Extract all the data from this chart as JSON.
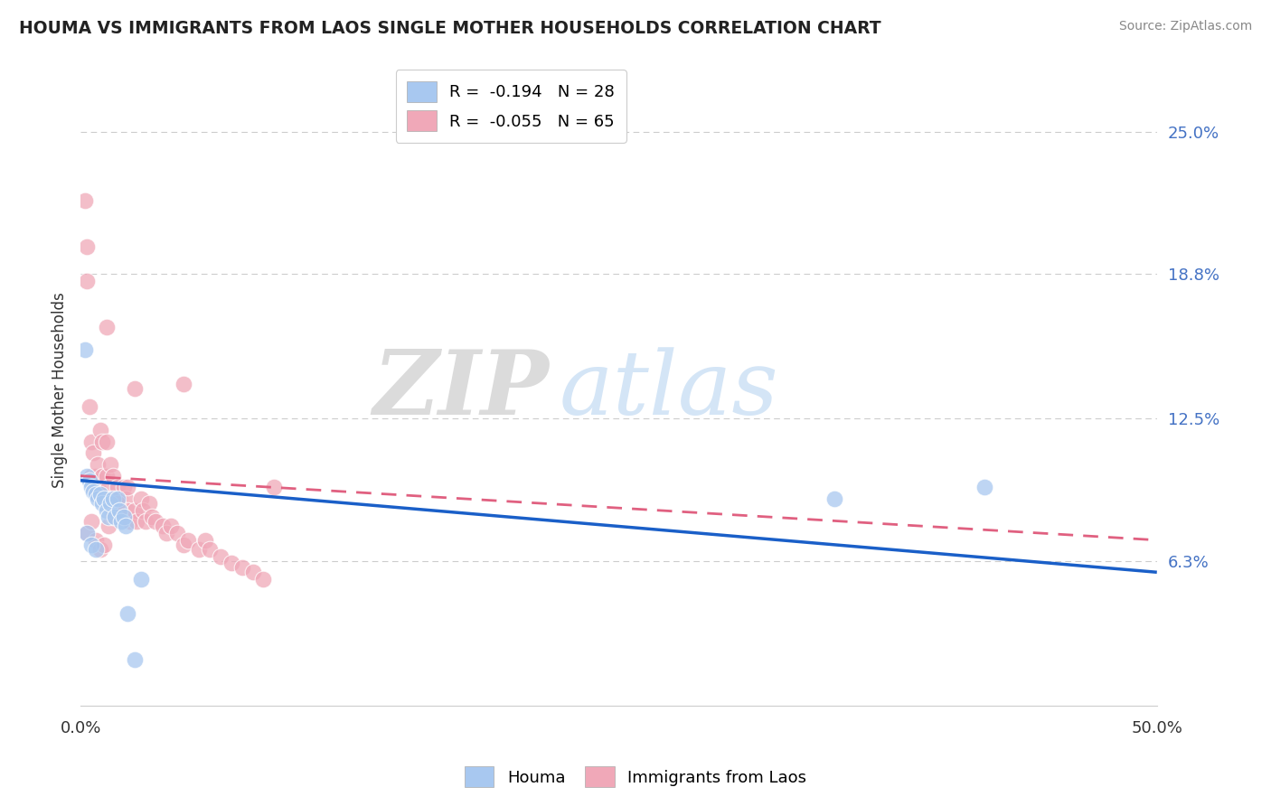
{
  "title": "HOUMA VS IMMIGRANTS FROM LAOS SINGLE MOTHER HOUSEHOLDS CORRELATION CHART",
  "source": "Source: ZipAtlas.com",
  "ylabel": "Single Mother Households",
  "yticks_right": [
    "25.0%",
    "18.8%",
    "12.5%",
    "6.3%"
  ],
  "yticks_right_vals": [
    0.25,
    0.188,
    0.125,
    0.063
  ],
  "legend_houma": "R =  -0.194   N = 28",
  "legend_laos": "R =  -0.055   N = 65",
  "houma_color": "#a8c8f0",
  "laos_color": "#f0a8b8",
  "trend_houma_color": "#1a5fc8",
  "trend_laos_color": "#e06080",
  "xlim": [
    0.0,
    0.5
  ],
  "ylim": [
    0.0,
    0.275
  ],
  "houma_x": [
    0.002,
    0.003,
    0.004,
    0.005,
    0.006,
    0.007,
    0.008,
    0.009,
    0.01,
    0.011,
    0.012,
    0.013,
    0.014,
    0.015,
    0.016,
    0.017,
    0.018,
    0.019,
    0.02,
    0.021,
    0.022,
    0.025,
    0.028,
    0.003,
    0.005,
    0.007,
    0.35,
    0.42
  ],
  "houma_y": [
    0.155,
    0.1,
    0.098,
    0.095,
    0.093,
    0.092,
    0.09,
    0.092,
    0.088,
    0.09,
    0.085,
    0.082,
    0.088,
    0.09,
    0.082,
    0.09,
    0.085,
    0.08,
    0.082,
    0.078,
    0.04,
    0.02,
    0.055,
    0.075,
    0.07,
    0.068,
    0.09,
    0.095
  ],
  "laos_x": [
    0.002,
    0.003,
    0.004,
    0.005,
    0.005,
    0.006,
    0.006,
    0.007,
    0.008,
    0.008,
    0.009,
    0.01,
    0.01,
    0.011,
    0.012,
    0.012,
    0.013,
    0.014,
    0.014,
    0.015,
    0.015,
    0.016,
    0.017,
    0.018,
    0.019,
    0.02,
    0.021,
    0.022,
    0.022,
    0.023,
    0.025,
    0.026,
    0.028,
    0.029,
    0.03,
    0.032,
    0.033,
    0.035,
    0.038,
    0.04,
    0.042,
    0.045,
    0.048,
    0.05,
    0.055,
    0.058,
    0.06,
    0.065,
    0.07,
    0.075,
    0.08,
    0.085,
    0.003,
    0.005,
    0.007,
    0.009,
    0.011,
    0.013,
    0.015,
    0.017,
    0.003,
    0.012,
    0.025,
    0.048,
    0.09
  ],
  "laos_y": [
    0.22,
    0.2,
    0.13,
    0.1,
    0.115,
    0.095,
    0.11,
    0.1,
    0.095,
    0.105,
    0.12,
    0.1,
    0.115,
    0.09,
    0.1,
    0.115,
    0.095,
    0.09,
    0.105,
    0.085,
    0.1,
    0.09,
    0.095,
    0.09,
    0.085,
    0.095,
    0.09,
    0.085,
    0.095,
    0.08,
    0.085,
    0.08,
    0.09,
    0.085,
    0.08,
    0.088,
    0.082,
    0.08,
    0.078,
    0.075,
    0.078,
    0.075,
    0.07,
    0.072,
    0.068,
    0.072,
    0.068,
    0.065,
    0.062,
    0.06,
    0.058,
    0.055,
    0.075,
    0.08,
    0.072,
    0.068,
    0.07,
    0.078,
    0.082,
    0.088,
    0.185,
    0.165,
    0.138,
    0.14,
    0.095
  ],
  "trend_houma_x0": 0.0,
  "trend_houma_y0": 0.098,
  "trend_houma_x1": 0.5,
  "trend_houma_y1": 0.058,
  "trend_laos_x0": 0.0,
  "trend_laos_y0": 0.1,
  "trend_laos_x1": 0.5,
  "trend_laos_y1": 0.072
}
